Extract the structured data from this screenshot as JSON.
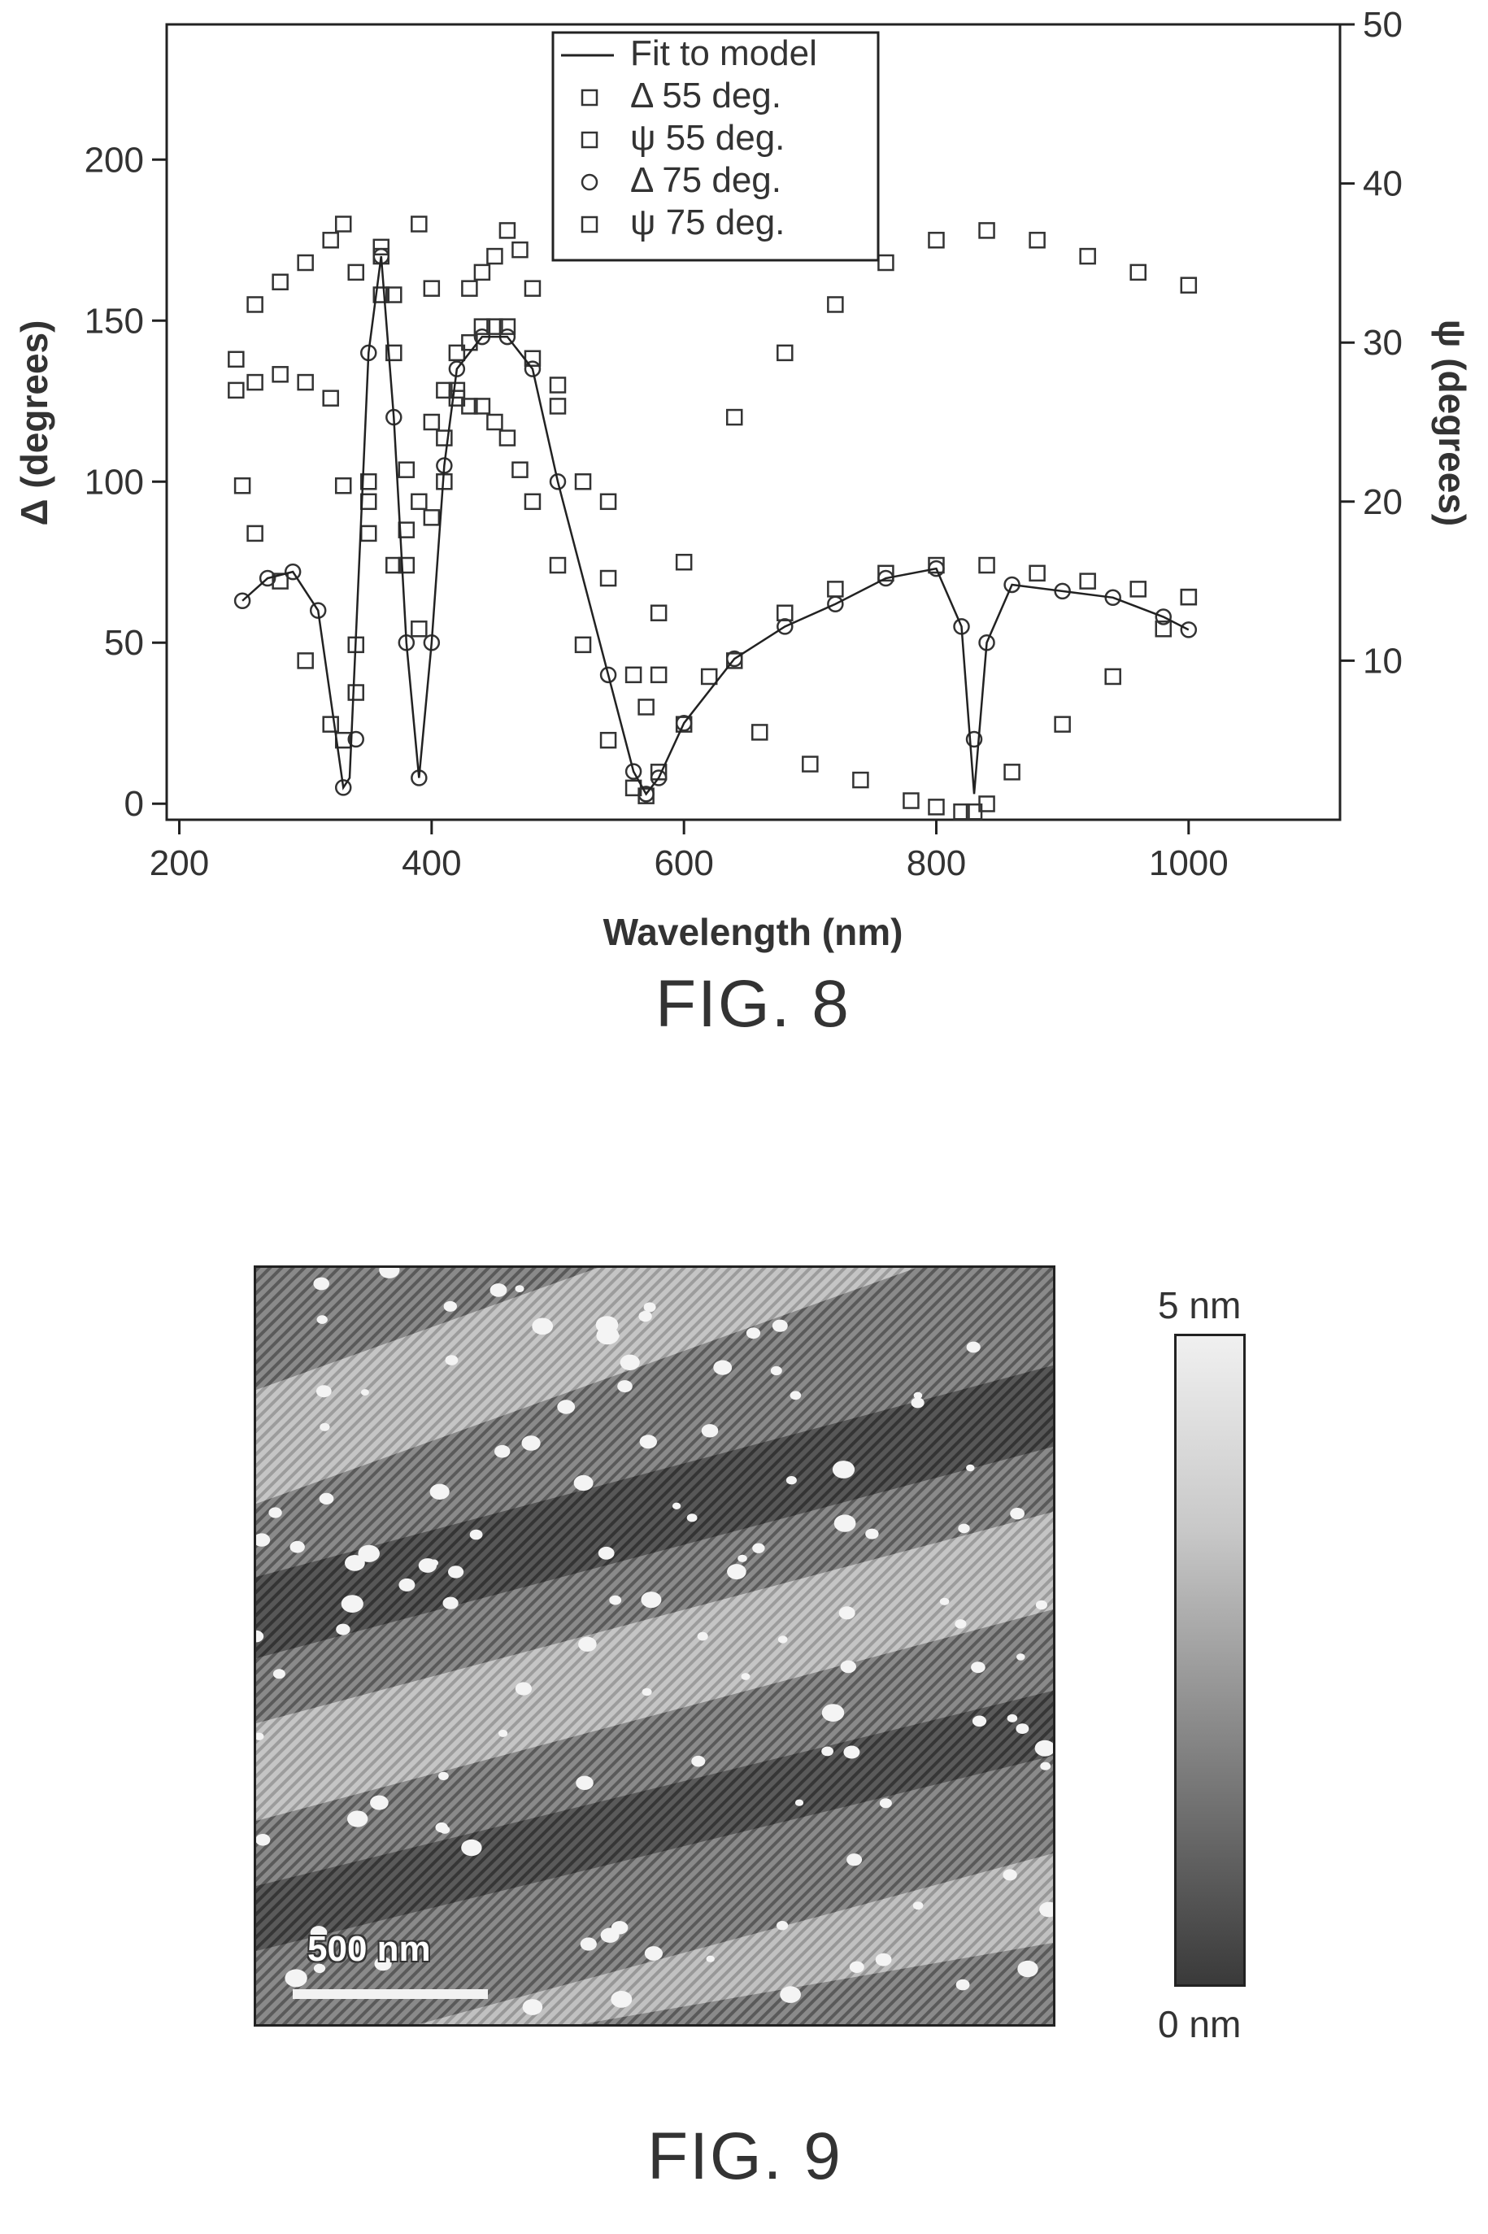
{
  "figure8": {
    "caption": "FIG. 8",
    "chart_data": {
      "type": "scatter",
      "xlabel": "Wavelength (nm)",
      "ylabel_left": "Δ (degrees)",
      "ylabel_right": "ψ (degrees)",
      "xlim": [
        190,
        1120
      ],
      "ylim_left": [
        -5,
        242
      ],
      "ylim_right": [
        0,
        50
      ],
      "xticks": [
        200,
        400,
        600,
        800,
        1000
      ],
      "yticks_left": [
        0,
        50,
        100,
        150,
        200
      ],
      "yticks_right": [
        10,
        20,
        30,
        40,
        50
      ],
      "legend_position": "top-center",
      "legend": [
        {
          "label": "Fit to model",
          "marker": "line"
        },
        {
          "label": "Δ 55 deg.",
          "marker": "square"
        },
        {
          "label": "ψ 55 deg.",
          "marker": "square"
        },
        {
          "label": "Δ 75 deg.",
          "marker": "circle"
        },
        {
          "label": "ψ 75 deg.",
          "marker": "square"
        }
      ],
      "series": [
        {
          "name": "Δ 55 deg.",
          "axis": "left",
          "marker": "square",
          "x": [
            245,
            260,
            280,
            300,
            320,
            330,
            340,
            350,
            360,
            370,
            380,
            390,
            400,
            410,
            420,
            430,
            440,
            450,
            460,
            470,
            480,
            500,
            520,
            540,
            560,
            570,
            580,
            600,
            640,
            680,
            720,
            760,
            800,
            840,
            880,
            920,
            960,
            1000
          ],
          "y": [
            138,
            155,
            162,
            168,
            175,
            180,
            165,
            100,
            170,
            140,
            85,
            180,
            160,
            100,
            140,
            160,
            165,
            170,
            178,
            172,
            160,
            130,
            100,
            70,
            40,
            30,
            40,
            75,
            120,
            140,
            155,
            168,
            175,
            178,
            175,
            170,
            165,
            161
          ]
        },
        {
          "name": "ψ 55 deg.",
          "axis": "right",
          "marker": "square",
          "x": [
            245,
            260,
            280,
            300,
            320,
            330,
            340,
            350,
            360,
            370,
            380,
            390,
            400,
            410,
            420,
            430,
            440,
            450,
            460,
            470,
            480,
            500,
            520,
            540,
            560,
            570,
            580,
            600,
            640,
            680,
            720,
            760,
            800,
            840,
            880,
            920,
            960,
            1000
          ],
          "y": [
            27,
            27.5,
            28,
            27.5,
            26.5,
            21,
            11,
            18,
            33,
            16,
            22,
            20,
            25,
            27,
            26.5,
            26,
            26,
            25,
            24,
            22,
            20,
            16,
            11,
            5,
            2,
            1.5,
            3,
            6,
            10,
            13,
            14.5,
            15.5,
            16,
            16,
            15.5,
            15,
            14.5,
            14
          ]
        },
        {
          "name": "Δ 75 deg.",
          "axis": "left",
          "marker": "circle",
          "x": [
            250,
            270,
            290,
            310,
            330,
            340,
            350,
            360,
            370,
            380,
            390,
            400,
            410,
            420,
            440,
            460,
            480,
            500,
            540,
            560,
            570,
            580,
            600,
            640,
            680,
            720,
            760,
            800,
            820,
            830,
            840,
            860,
            900,
            940,
            980,
            1000
          ],
          "y": [
            63,
            70,
            72,
            60,
            5,
            20,
            140,
            170,
            120,
            50,
            8,
            50,
            105,
            135,
            145,
            145,
            135,
            100,
            40,
            10,
            3,
            8,
            25,
            45,
            55,
            62,
            70,
            73,
            55,
            20,
            50,
            68,
            66,
            64,
            58,
            54
          ]
        },
        {
          "name": "ψ 75 deg.",
          "axis": "right",
          "marker": "square",
          "x": [
            250,
            260,
            280,
            300,
            320,
            330,
            340,
            350,
            360,
            370,
            380,
            390,
            400,
            410,
            420,
            430,
            440,
            450,
            460,
            480,
            500,
            540,
            580,
            620,
            660,
            700,
            740,
            780,
            800,
            820,
            830,
            840,
            860,
            900,
            940,
            980,
            1000
          ],
          "y": [
            21,
            18,
            15,
            10,
            6,
            5,
            8,
            20,
            36,
            33,
            16,
            12,
            19,
            24,
            27,
            30,
            31,
            31,
            31,
            29,
            26,
            20,
            13,
            9,
            5.5,
            3.5,
            2.5,
            1.2,
            0.8,
            0.5,
            0.5,
            1,
            3,
            6,
            9,
            12,
            14
          ]
        },
        {
          "name": "Fit to model",
          "axis": "left",
          "marker": "line",
          "x": [
            250,
            270,
            290,
            310,
            330,
            335,
            350,
            360,
            370,
            380,
            390,
            400,
            410,
            420,
            440,
            460,
            480,
            500,
            540,
            560,
            570,
            580,
            600,
            640,
            680,
            720,
            760,
            800,
            820,
            830,
            840,
            860,
            900,
            940,
            980,
            1000
          ],
          "y": [
            63,
            70,
            72,
            60,
            5,
            8,
            140,
            170,
            120,
            50,
            8,
            50,
            105,
            135,
            145,
            145,
            135,
            100,
            40,
            10,
            3,
            8,
            25,
            45,
            55,
            62,
            70,
            73,
            55,
            3,
            50,
            68,
            66,
            64,
            58,
            54
          ]
        }
      ]
    }
  },
  "figure9": {
    "caption": "FIG. 9",
    "scale_bar_label": "500 nm",
    "colorbar": {
      "max_label": "5 nm",
      "min_label": "0 nm"
    }
  }
}
